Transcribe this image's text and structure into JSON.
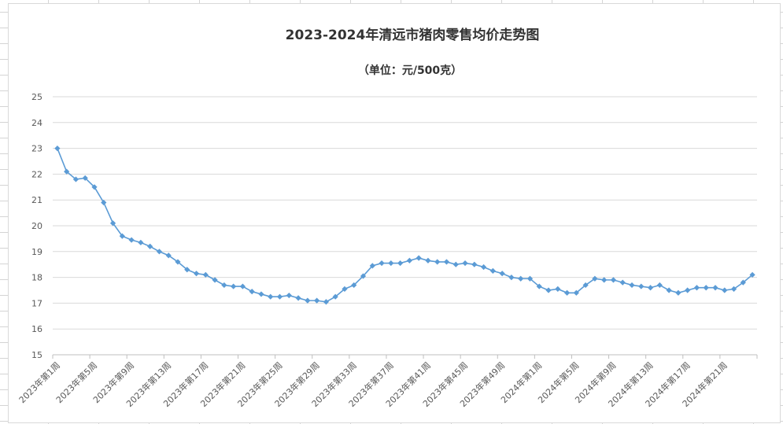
{
  "chart_data": {
    "type": "line",
    "title": "2023-2024年清远市猪肉零售均价走势图",
    "subtitle": "（单位：元/500克）",
    "ylim": [
      15,
      25
    ],
    "yticks": [
      15,
      16,
      17,
      18,
      19,
      20,
      21,
      22,
      23,
      24,
      25
    ],
    "grid": true,
    "legend": "none",
    "colors": {
      "series": "#5b9bd5",
      "grid": "#d9d9d9",
      "text": "#595959"
    },
    "x_labels": [
      "2023年第1周",
      "2023年第5周",
      "2023年第9周",
      "2023年第13周",
      "2023年第17周",
      "2023年第21周",
      "2023年第25周",
      "2023年第29周",
      "2023年第33周",
      "2023年第37周",
      "2023年第41周",
      "2023年第45周",
      "2023年第49周",
      "2024年第1周",
      "2024年第5周",
      "2024年第9周",
      "2024年第13周",
      "2024年第17周",
      "2024年第21周"
    ],
    "label_every": 4,
    "series": [
      {
        "values": [
          23.0,
          22.1,
          21.8,
          21.85,
          21.5,
          20.9,
          20.1,
          19.6,
          19.45,
          19.35,
          19.2,
          19.0,
          18.85,
          18.6,
          18.3,
          18.15,
          18.1,
          17.9,
          17.7,
          17.65,
          17.65,
          17.45,
          17.35,
          17.25,
          17.25,
          17.3,
          17.2,
          17.1,
          17.1,
          17.05,
          17.25,
          17.55,
          17.7,
          18.05,
          18.45,
          18.55,
          18.55,
          18.55,
          18.65,
          18.75,
          18.65,
          18.6,
          18.6,
          18.5,
          18.55,
          18.5,
          18.4,
          18.25,
          18.15,
          18.0,
          17.95,
          17.95,
          17.65,
          17.5,
          17.55,
          17.4,
          17.4,
          17.7,
          17.95,
          17.9,
          17.9,
          17.8,
          17.7,
          17.65,
          17.6,
          17.7,
          17.5,
          17.4,
          17.5,
          17.6,
          17.6,
          17.6,
          17.5,
          17.55,
          17.8,
          18.1
        ]
      }
    ]
  }
}
